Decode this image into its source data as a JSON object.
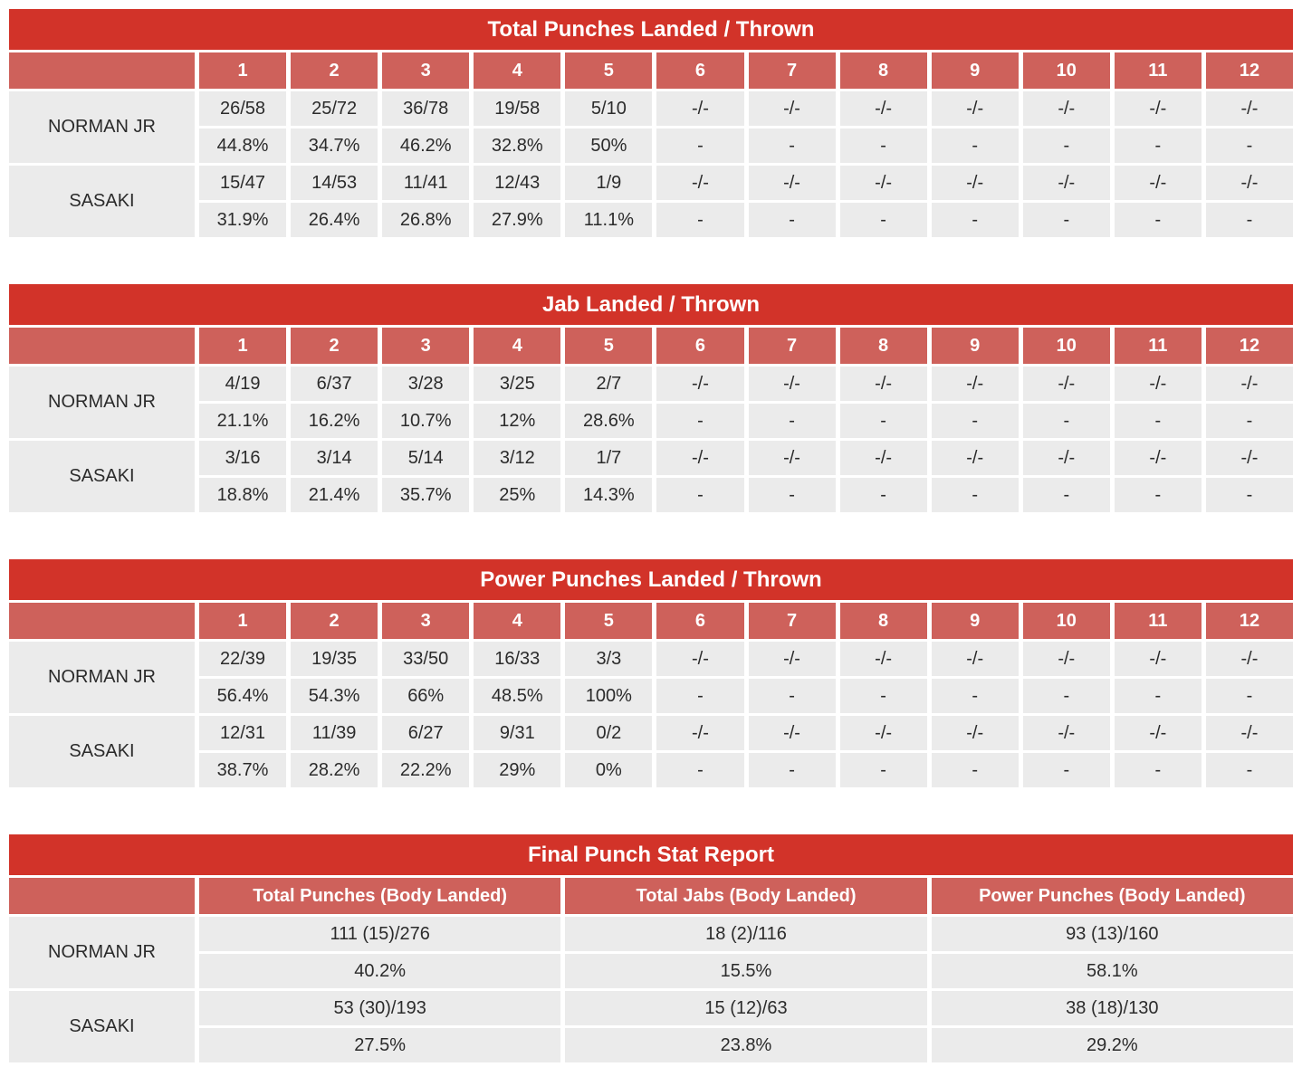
{
  "colors": {
    "title_bar_bg": "#d23329",
    "title_text": "#ffffff",
    "subheader_bg": "#ce615b",
    "subheader_text": "#ffffff",
    "cell_bg": "#ebebeb",
    "cell_text": "#2b2b2b",
    "page_bg": "#ffffff"
  },
  "chart_data": [
    {
      "type": "table",
      "title": "Total Punches Landed / Thrown",
      "columns": [
        "1",
        "2",
        "3",
        "4",
        "5",
        "6",
        "7",
        "8",
        "9",
        "10",
        "11",
        "12"
      ],
      "rows": [
        {
          "name": "NORMAN JR",
          "landed_thrown": [
            "26/58",
            "25/72",
            "36/78",
            "19/58",
            "5/10",
            "-/-",
            "-/-",
            "-/-",
            "-/-",
            "-/-",
            "-/-",
            "-/-"
          ],
          "pct": [
            "44.8%",
            "34.7%",
            "46.2%",
            "32.8%",
            "50%",
            "-",
            "-",
            "-",
            "-",
            "-",
            "-",
            "-"
          ]
        },
        {
          "name": "SASAKI",
          "landed_thrown": [
            "15/47",
            "14/53",
            "11/41",
            "12/43",
            "1/9",
            "-/-",
            "-/-",
            "-/-",
            "-/-",
            "-/-",
            "-/-",
            "-/-"
          ],
          "pct": [
            "31.9%",
            "26.4%",
            "26.8%",
            "27.9%",
            "11.1%",
            "-",
            "-",
            "-",
            "-",
            "-",
            "-",
            "-"
          ]
        }
      ]
    },
    {
      "type": "table",
      "title": "Jab Landed / Thrown",
      "columns": [
        "1",
        "2",
        "3",
        "4",
        "5",
        "6",
        "7",
        "8",
        "9",
        "10",
        "11",
        "12"
      ],
      "rows": [
        {
          "name": "NORMAN JR",
          "landed_thrown": [
            "4/19",
            "6/37",
            "3/28",
            "3/25",
            "2/7",
            "-/-",
            "-/-",
            "-/-",
            "-/-",
            "-/-",
            "-/-",
            "-/-"
          ],
          "pct": [
            "21.1%",
            "16.2%",
            "10.7%",
            "12%",
            "28.6%",
            "-",
            "-",
            "-",
            "-",
            "-",
            "-",
            "-"
          ]
        },
        {
          "name": "SASAKI",
          "landed_thrown": [
            "3/16",
            "3/14",
            "5/14",
            "3/12",
            "1/7",
            "-/-",
            "-/-",
            "-/-",
            "-/-",
            "-/-",
            "-/-",
            "-/-"
          ],
          "pct": [
            "18.8%",
            "21.4%",
            "35.7%",
            "25%",
            "14.3%",
            "-",
            "-",
            "-",
            "-",
            "-",
            "-",
            "-"
          ]
        }
      ]
    },
    {
      "type": "table",
      "title": "Power Punches Landed / Thrown",
      "columns": [
        "1",
        "2",
        "3",
        "4",
        "5",
        "6",
        "7",
        "8",
        "9",
        "10",
        "11",
        "12"
      ],
      "rows": [
        {
          "name": "NORMAN JR",
          "landed_thrown": [
            "22/39",
            "19/35",
            "33/50",
            "16/33",
            "3/3",
            "-/-",
            "-/-",
            "-/-",
            "-/-",
            "-/-",
            "-/-",
            "-/-"
          ],
          "pct": [
            "56.4%",
            "54.3%",
            "66%",
            "48.5%",
            "100%",
            "-",
            "-",
            "-",
            "-",
            "-",
            "-",
            "-"
          ]
        },
        {
          "name": "SASAKI",
          "landed_thrown": [
            "12/31",
            "11/39",
            "6/27",
            "9/31",
            "0/2",
            "-/-",
            "-/-",
            "-/-",
            "-/-",
            "-/-",
            "-/-",
            "-/-"
          ],
          "pct": [
            "38.7%",
            "28.2%",
            "22.2%",
            "29%",
            "0%",
            "-",
            "-",
            "-",
            "-",
            "-",
            "-",
            "-"
          ]
        }
      ]
    },
    {
      "type": "table",
      "title": "Final Punch Stat Report",
      "columns": [
        "Total Punches (Body Landed)",
        "Total Jabs (Body Landed)",
        "Power Punches (Body Landed)"
      ],
      "rows": [
        {
          "name": "NORMAN JR",
          "landed_thrown": [
            "111 (15)/276",
            "18 (2)/116",
            "93 (13)/160"
          ],
          "pct": [
            "40.2%",
            "15.5%",
            "58.1%"
          ]
        },
        {
          "name": "SASAKI",
          "landed_thrown": [
            "53 (30)/193",
            "15 (12)/63",
            "38 (18)/130"
          ],
          "pct": [
            "27.5%",
            "23.8%",
            "29.2%"
          ]
        }
      ]
    }
  ]
}
